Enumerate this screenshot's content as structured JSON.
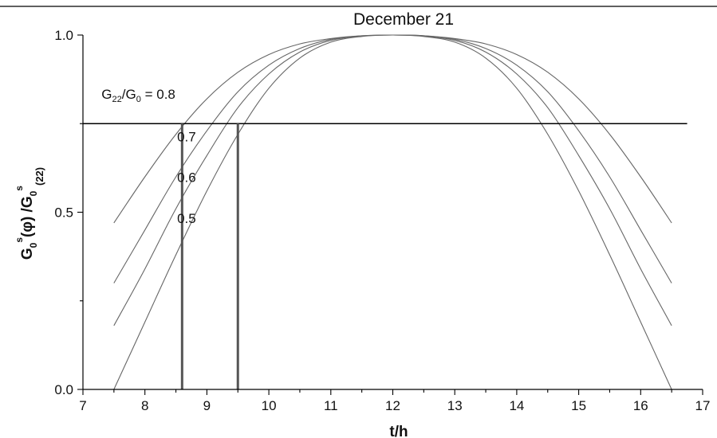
{
  "chart_data": {
    "type": "line",
    "title": "December 21",
    "xlabel": "t/h",
    "ylabel": {
      "base": "G",
      "sub_0": "0",
      "sup_s": "s",
      "phi": "(φ) /G",
      "sub_0b": "0",
      "sup_sb": "s",
      "sub_22": "(22)"
    },
    "xlim": [
      7,
      17
    ],
    "ylim": [
      0,
      1
    ],
    "x_ticks": [
      "7",
      "8",
      "9",
      "10",
      "11",
      "12",
      "13",
      "14",
      "15",
      "16",
      "17"
    ],
    "y_ticks": [
      "0.0",
      "0.5",
      "1.0"
    ],
    "x_tick_values": [
      7,
      8,
      9,
      10,
      11,
      12,
      13,
      14,
      15,
      16,
      17
    ],
    "y_tick_values": [
      0,
      0.5,
      1
    ],
    "grid": false,
    "series": [
      {
        "label": "0.8",
        "label_text": {
          "g22": "G",
          "s22": "22",
          "mid": "/G",
          "s0": "0",
          "tail": " = 0.8"
        },
        "x": [
          7.5,
          8.0,
          8.5,
          9.0,
          9.5,
          10.0,
          10.5,
          11.0,
          11.5,
          12.0,
          12.5,
          13.0,
          13.5,
          14.0,
          14.5,
          15.0,
          15.5,
          16.0,
          16.5
        ],
        "y": [
          0.47,
          0.6,
          0.72,
          0.82,
          0.895,
          0.945,
          0.975,
          0.99,
          0.998,
          1.0,
          0.998,
          0.99,
          0.975,
          0.945,
          0.895,
          0.82,
          0.72,
          0.6,
          0.47
        ]
      },
      {
        "label": "0.7",
        "x": [
          7.5,
          8.0,
          8.5,
          9.0,
          9.5,
          10.0,
          10.5,
          11.0,
          11.5,
          12.0,
          12.5,
          13.0,
          13.5,
          14.0,
          14.5,
          15.0,
          15.5,
          16.0,
          16.5
        ],
        "y": [
          0.3,
          0.45,
          0.6,
          0.73,
          0.84,
          0.915,
          0.962,
          0.988,
          0.998,
          1.0,
          0.998,
          0.988,
          0.962,
          0.915,
          0.84,
          0.73,
          0.6,
          0.45,
          0.3
        ]
      },
      {
        "label": "0.6",
        "x": [
          7.5,
          8.0,
          8.5,
          9.0,
          9.5,
          10.0,
          10.5,
          11.0,
          11.5,
          12.0,
          12.5,
          13.0,
          13.5,
          14.0,
          14.5,
          15.0,
          15.5,
          16.0,
          16.5
        ],
        "y": [
          0.18,
          0.34,
          0.51,
          0.66,
          0.795,
          0.89,
          0.952,
          0.985,
          0.997,
          1.0,
          0.997,
          0.985,
          0.952,
          0.89,
          0.795,
          0.66,
          0.51,
          0.34,
          0.18
        ]
      },
      {
        "label": "0.5",
        "x": [
          7.5,
          8.0,
          8.5,
          9.0,
          9.5,
          10.0,
          10.5,
          11.0,
          11.5,
          12.0,
          12.5,
          13.0,
          13.5,
          14.0,
          14.5,
          15.0,
          15.5,
          16.0,
          16.5
        ],
        "y": [
          0.0,
          0.19,
          0.38,
          0.56,
          0.72,
          0.85,
          0.935,
          0.98,
          0.996,
          1.0,
          0.996,
          0.98,
          0.935,
          0.85,
          0.72,
          0.56,
          0.38,
          0.19,
          0.0
        ]
      }
    ],
    "threshold_y": 0.75,
    "threshold_xmax": 16.75,
    "vertical_markers": [
      {
        "x": 8.6,
        "y_top": 0.75
      },
      {
        "x": 9.5,
        "y_top": 0.75
      }
    ],
    "curve_label_anchors": [
      {
        "x": 7.3,
        "y": 0.82
      },
      {
        "x": 8.52,
        "y": 0.7
      },
      {
        "x": 8.52,
        "y": 0.585
      },
      {
        "x": 8.52,
        "y": 0.47
      }
    ],
    "colors": {
      "curve": "#666666",
      "threshold": "#000000",
      "marker": "#555555"
    }
  }
}
